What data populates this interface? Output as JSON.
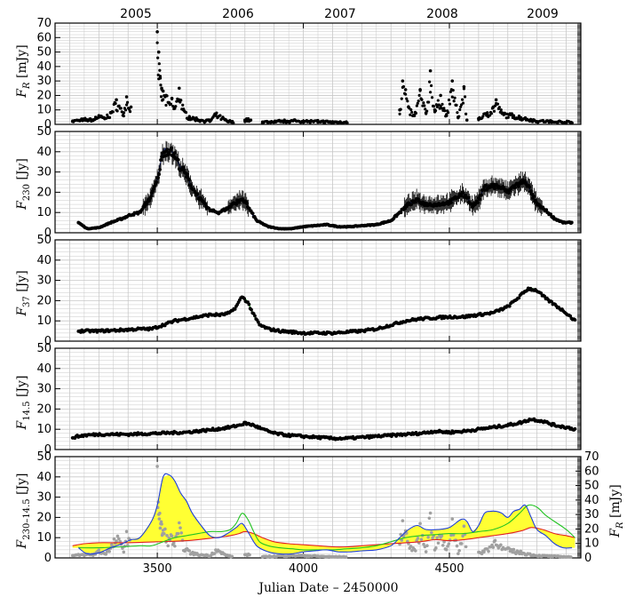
{
  "top_axis": {
    "years": [
      "2005",
      "2006",
      "2007",
      "2008",
      "2009"
    ]
  },
  "bottom_axis": {
    "label": "Julian Date – 2450000",
    "ticks": [
      3500,
      4000,
      4500
    ],
    "xlim": [
      3150,
      4950
    ]
  },
  "colors": {
    "data": "#000000",
    "fit_230": "#1f3fd6",
    "fit_37": "#22c322",
    "fit_14_5": "#e02020",
    "fill_between": "#ffff33",
    "optical_overlay": "#a0a0a0",
    "grid": "#c8c8c8"
  },
  "chart_data": [
    {
      "id": "optical",
      "type": "scatter",
      "ylabel": "F_R [mJy]",
      "ylim": [
        0,
        70
      ],
      "yticks": [
        0,
        10,
        20,
        30,
        40,
        50,
        60,
        70
      ],
      "grid": true,
      "segments": [
        {
          "x": [
            3210,
            3250,
            3280,
            3300,
            3320,
            3340,
            3360,
            3385,
            3395,
            3410
          ],
          "y": [
            2,
            3,
            3,
            6,
            4,
            8,
            17,
            8,
            19,
            12
          ]
        },
        {
          "x": [
            3500,
            3505,
            3510,
            3515,
            3520,
            3530,
            3540,
            3550,
            3560,
            3575,
            3590,
            3610,
            3640,
            3680,
            3700,
            3740,
            3760
          ],
          "y": [
            64,
            50,
            32,
            25,
            23,
            20,
            15,
            18,
            12,
            25,
            10,
            5,
            3,
            2,
            7,
            2,
            1
          ]
        },
        {
          "x": [
            3800,
            3820
          ],
          "y": [
            3,
            3
          ]
        },
        {
          "x": [
            3860,
            3900,
            3950,
            4000,
            4050,
            4100,
            4150
          ],
          "y": [
            1,
            1.5,
            2,
            2,
            1.5,
            1,
            1
          ]
        },
        {
          "x": [
            4330,
            4340,
            4350,
            4360,
            4380,
            4400,
            4420,
            4435,
            4450,
            4470,
            4490,
            4510,
            4530,
            4550,
            4560
          ],
          "y": [
            10,
            30,
            24,
            12,
            6,
            24,
            8,
            37,
            10,
            20,
            6,
            30,
            5,
            26,
            3
          ]
        },
        {
          "x": [
            4600,
            4630,
            4650,
            4660,
            4680,
            4720,
            4760,
            4800,
            4850,
            4900,
            4920
          ],
          "y": [
            4,
            8,
            12,
            17,
            8,
            6,
            4,
            2,
            1.5,
            1,
            1
          ]
        }
      ]
    },
    {
      "id": "f230",
      "type": "line",
      "ylabel": "F_230 [Jy]",
      "ylim": [
        0,
        50
      ],
      "yticks": [
        0,
        10,
        20,
        30,
        40,
        50
      ],
      "grid": true,
      "x": [
        3230,
        3260,
        3300,
        3340,
        3380,
        3410,
        3440,
        3480,
        3500,
        3520,
        3540,
        3560,
        3580,
        3600,
        3620,
        3650,
        3680,
        3710,
        3740,
        3770,
        3790,
        3810,
        3840,
        3880,
        3920,
        3960,
        4000,
        4040,
        4080,
        4120,
        4160,
        4200,
        4250,
        4300,
        4330,
        4360,
        4390,
        4420,
        4460,
        4500,
        4540,
        4560,
        4580,
        4600,
        4620,
        4640,
        4660,
        4680,
        4700,
        4720,
        4740,
        4760,
        4780,
        4800,
        4830,
        4860,
        4890,
        4920
      ],
      "y": [
        5,
        2,
        2.5,
        5,
        7,
        9,
        10,
        18,
        26,
        40,
        41,
        38,
        32,
        28,
        22,
        16,
        11,
        10,
        12,
        15,
        17,
        13,
        6,
        3,
        2,
        2,
        3,
        3.5,
        4,
        3,
        3,
        3.5,
        4,
        6,
        10,
        14,
        16,
        14,
        14,
        15,
        19,
        18,
        13,
        16,
        22,
        23,
        23,
        22,
        20,
        23,
        24,
        26,
        20,
        14,
        11,
        7,
        5,
        5
      ]
    },
    {
      "id": "f37",
      "type": "line",
      "ylabel": "F_37 [Jy]",
      "ylim": [
        0,
        50
      ],
      "yticks": [
        0,
        10,
        20,
        30,
        40,
        50
      ],
      "grid": true,
      "x": [
        3230,
        3300,
        3380,
        3440,
        3480,
        3520,
        3560,
        3600,
        3640,
        3680,
        3720,
        3750,
        3770,
        3790,
        3810,
        3830,
        3850,
        3880,
        3920,
        3960,
        4000,
        4050,
        4100,
        4150,
        4200,
        4250,
        4300,
        4350,
        4400,
        4450,
        4500,
        4550,
        4600,
        4650,
        4700,
        4740,
        4770,
        4800,
        4830,
        4860,
        4900,
        4930
      ],
      "y": [
        5,
        5,
        5.5,
        6,
        6,
        8,
        10,
        11,
        12,
        13,
        13,
        14,
        17,
        22,
        19,
        13,
        8,
        6,
        5,
        4.5,
        4,
        4,
        4,
        4.5,
        5,
        6,
        8,
        10,
        11,
        11.5,
        12,
        12,
        13,
        14,
        17,
        22,
        26,
        25,
        21,
        18,
        14,
        10
      ]
    },
    {
      "id": "f14_5",
      "type": "line",
      "ylabel": "F_14.5 [Jy]",
      "ylim": [
        0,
        50
      ],
      "yticks": [
        0,
        10,
        20,
        30,
        40,
        50
      ],
      "grid": true,
      "x": [
        3210,
        3250,
        3300,
        3400,
        3500,
        3600,
        3700,
        3750,
        3780,
        3800,
        3830,
        3860,
        3900,
        3950,
        4000,
        4050,
        4100,
        4150,
        4200,
        4300,
        4400,
        4450,
        4500,
        4550,
        4600,
        4650,
        4700,
        4750,
        4780,
        4820,
        4860,
        4900,
        4930
      ],
      "y": [
        6,
        7,
        7.5,
        7.5,
        8,
        8.5,
        10,
        11,
        12,
        13,
        12,
        10,
        8,
        7,
        6.5,
        6,
        5.5,
        5.5,
        6,
        7,
        8,
        9,
        8.5,
        9,
        10,
        11,
        12,
        13.5,
        15,
        14,
        12,
        11,
        10
      ]
    },
    {
      "id": "overlay",
      "type": "area",
      "ylabel": "F_230–14.5 [Jy]",
      "ylabel_right": "F_R [mJy]",
      "ylim": [
        0,
        50
      ],
      "yticks": [
        0,
        10,
        20,
        30,
        40,
        50
      ],
      "yticks_right": [
        0,
        10,
        20,
        30,
        40,
        50,
        60,
        70
      ],
      "grid": true
    }
  ]
}
